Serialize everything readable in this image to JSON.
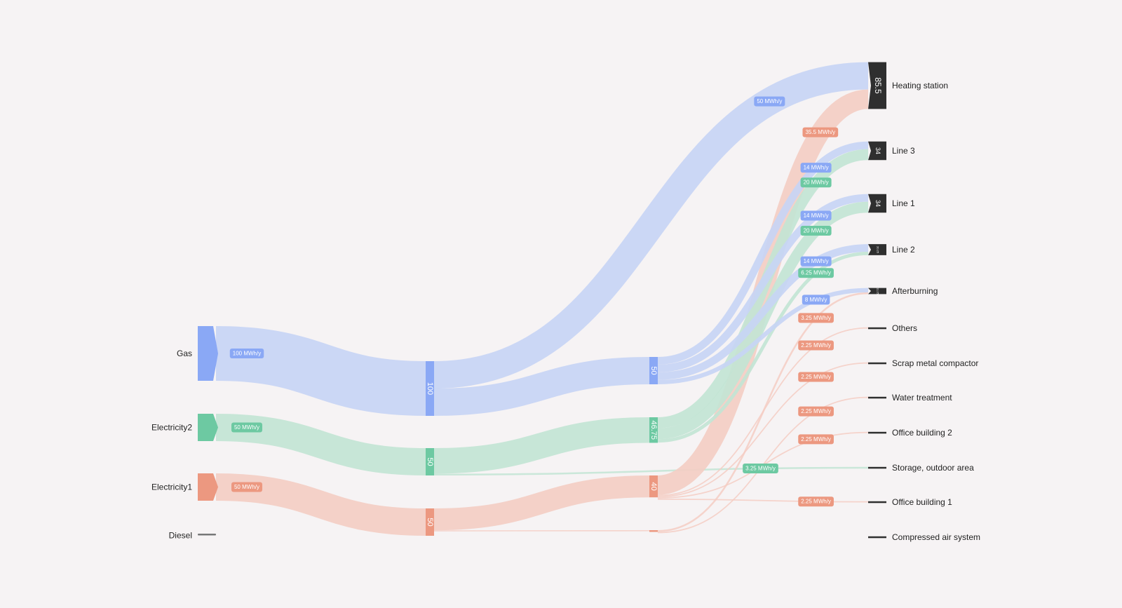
{
  "chart_data": {
    "type": "sankey",
    "unit": "MWh/y",
    "colors": {
      "gas": "#8aa8f5",
      "electricity2": "#6dc9a2",
      "electricity1": "#ec9880",
      "diesel": "#777777",
      "sink": "#2f2f2f",
      "gas_link": "#c7d4f5",
      "electricity2_link": "#c2e4d4",
      "electricity1_link": "#f4cdc3",
      "background": "#f6f3f4"
    },
    "sources": [
      {
        "name": "Gas",
        "value": 100,
        "link_label": "100 MWh/y",
        "color_key": "gas"
      },
      {
        "name": "Electricity2",
        "value": 50,
        "link_label": "50 MWh/y",
        "color_key": "electricity2"
      },
      {
        "name": "Electricity1",
        "value": 50,
        "link_label": "50 MWh/y",
        "color_key": "electricity1"
      },
      {
        "name": "Diesel",
        "value": 0,
        "link_label": "",
        "color_key": "diesel"
      }
    ],
    "stage1": [
      {
        "value": 100,
        "label": "100",
        "color_key": "gas"
      },
      {
        "value": 50,
        "label": "50",
        "color_key": "electricity2"
      },
      {
        "value": 50,
        "label": "50",
        "color_key": "electricity1"
      }
    ],
    "stage2": [
      {
        "value": 50,
        "label": "50",
        "color_key": "gas"
      },
      {
        "value": 46.75,
        "label": "46.75",
        "color_key": "electricity2"
      },
      {
        "value": 40,
        "label": "40",
        "color_key": "electricity1"
      },
      {
        "value": 2,
        "label": "",
        "color_key": "electricity1"
      }
    ],
    "targets": [
      {
        "name": "Heating station",
        "value": 85.5,
        "label": "85.5"
      },
      {
        "name": "Line 3",
        "value": 34,
        "label": "34"
      },
      {
        "name": "Line 1",
        "value": 34,
        "label": "34"
      },
      {
        "name": "Line 2",
        "value": 20.25,
        "label": "20.25"
      },
      {
        "name": "Afterburning",
        "value": 11.25,
        "label": "11.25"
      },
      {
        "name": "Others",
        "value": 2.25,
        "label": ""
      },
      {
        "name": "Scrap metal compactor",
        "value": 2.25,
        "label": ""
      },
      {
        "name": "Water treatment",
        "value": 2.25,
        "label": ""
      },
      {
        "name": "Office building 2",
        "value": 2.25,
        "label": ""
      },
      {
        "name": "Storage, outdoor area",
        "value": 3.25,
        "label": ""
      },
      {
        "name": "Office building 1",
        "value": 2.25,
        "label": ""
      },
      {
        "name": "Compressed air system",
        "value": 2.25,
        "label": ""
      }
    ],
    "links": [
      {
        "from": "stage1:0",
        "to": "target:0",
        "value": 50,
        "label": "50 MWh/y",
        "color_key": "gas"
      },
      {
        "from": "stage1:0",
        "to": "stage2:0",
        "value": 50,
        "label": "",
        "color_key": "gas"
      },
      {
        "from": "stage1:1",
        "to": "stage2:1",
        "value": 46.75,
        "label": "",
        "color_key": "electricity2"
      },
      {
        "from": "stage1:1",
        "to": "target:9",
        "value": 3.25,
        "label": "3.25 MWh/y",
        "color_key": "electricity2"
      },
      {
        "from": "stage1:2",
        "to": "stage2:2",
        "value": 40,
        "label": "",
        "color_key": "electricity1"
      },
      {
        "from": "stage1:2",
        "to": "stage2:3",
        "value": 2,
        "label": "",
        "color_key": "electricity1"
      },
      {
        "from": "stage2:2",
        "to": "target:0",
        "value": 35.5,
        "label": "35.5 MWh/y",
        "color_key": "electricity1"
      },
      {
        "from": "stage2:0",
        "to": "target:1",
        "value": 14,
        "label": "14 MWh/y",
        "color_key": "gas"
      },
      {
        "from": "stage2:1",
        "to": "target:1",
        "value": 20,
        "label": "20 MWh/y",
        "color_key": "electricity2"
      },
      {
        "from": "stage2:0",
        "to": "target:2",
        "value": 14,
        "label": "14 MWh/y",
        "color_key": "gas"
      },
      {
        "from": "stage2:1",
        "to": "target:2",
        "value": 20,
        "label": "20 MWh/y",
        "color_key": "electricity2"
      },
      {
        "from": "stage2:0",
        "to": "target:3",
        "value": 14,
        "label": "14 MWh/y",
        "color_key": "gas"
      },
      {
        "from": "stage2:1",
        "to": "target:3",
        "value": 6.25,
        "label": "6.25 MWh/y",
        "color_key": "electricity2"
      },
      {
        "from": "stage2:0",
        "to": "target:4",
        "value": 8,
        "label": "8 MWh/y",
        "color_key": "gas"
      },
      {
        "from": "stage2:3",
        "to": "target:4",
        "value": 3.25,
        "label": "3.25 MWh/y",
        "color_key": "electricity1"
      },
      {
        "from": "stage2:2",
        "to": "target:5",
        "value": 2.25,
        "label": "2.25 MWh/y",
        "color_key": "electricity1"
      },
      {
        "from": "stage2:2",
        "to": "target:6",
        "value": 2.25,
        "label": "2.25 MWh/y",
        "color_key": "electricity1"
      },
      {
        "from": "stage2:3",
        "to": "target:7",
        "value": 2.25,
        "label": "2.25 MWh/y",
        "color_key": "electricity1"
      },
      {
        "from": "stage2:2",
        "to": "target:8",
        "value": 2.25,
        "label": "2.25 MWh/y",
        "color_key": "electricity1"
      },
      {
        "from": "stage2:2",
        "to": "target:10",
        "value": 2.25,
        "label": "2.25 MWh/y",
        "color_key": "electricity1"
      }
    ]
  }
}
